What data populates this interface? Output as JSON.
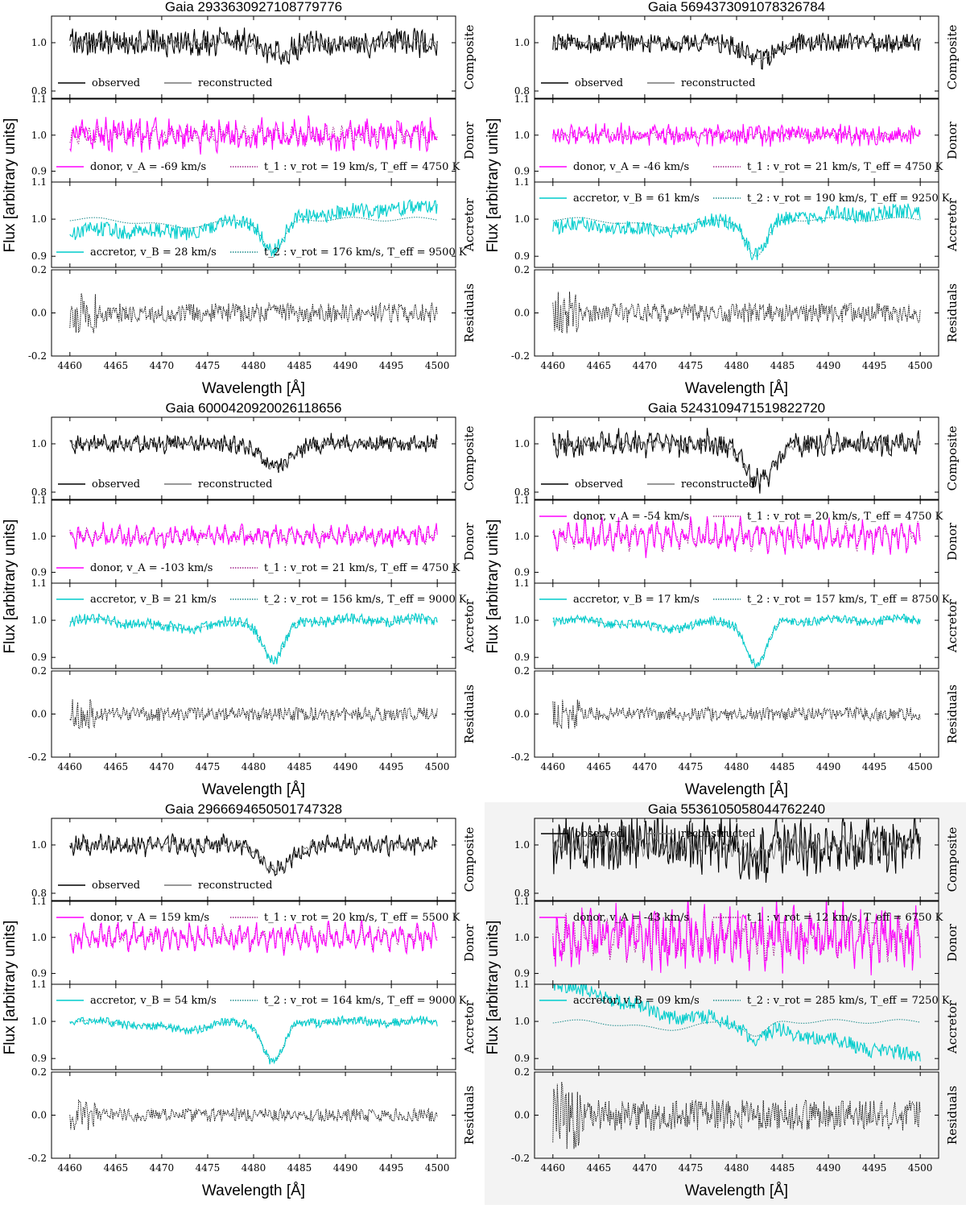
{
  "figure": {
    "ylabel": "Flux [arbitrary units]",
    "xlabel": "Wavelength [Å]",
    "highlight_color": "#f3f3f3",
    "colors": {
      "observed": "#000000",
      "reconstructed": "#777777",
      "donor": "#ff00ff",
      "donor_template": "#a0208a",
      "accretor": "#00cccc",
      "accretor_template": "#1a8a8a",
      "residuals": "#000000"
    },
    "row_labels": [
      "Composite",
      "Donor",
      "Accretor",
      "Residuals"
    ],
    "legend": {
      "observed": "observed",
      "reconstructed": "reconstructed",
      "donor_prefix": "donor, ",
      "accretor_prefix": "accretor, "
    }
  },
  "chart_data": [
    {
      "type": "line",
      "title": "Gaia 2933630927108779776",
      "highlighted": false,
      "x_range": [
        4460,
        4500
      ],
      "xticks": [
        4460,
        4465,
        4470,
        4475,
        4480,
        4485,
        4490,
        4495,
        4500
      ],
      "composite": {
        "ylim": [
          0.77,
          1.11
        ],
        "yticks": [
          "0.8",
          "1.0"
        ],
        "depth": 0.05,
        "noise": 0.05
      },
      "donor": {
        "ylim": [
          0.87,
          1.1
        ],
        "yticks": [
          "0.9",
          "1.0",
          "1.1"
        ],
        "velocity": "v_A = -69 km/s",
        "template": "t_1 : v_rot = 19 km/s, T_eff = 4750 K",
        "legend_position": "bottom",
        "noise": 0.04,
        "amp": 0.05
      },
      "accretor": {
        "ylim": [
          0.87,
          1.1
        ],
        "yticks": [
          "0.9",
          "1.0",
          "1.1"
        ],
        "velocity": "v_B = 28 km/s",
        "template": "t_2 : v_rot = 176 km/s, T_eff = 9500 K",
        "legend_position": "bottom",
        "line_depth": 0.09,
        "tilt": 0.035,
        "noise": 0.02
      },
      "residuals": {
        "ylim": [
          -0.2,
          0.2
        ],
        "yticks": [
          "0.2",
          "0.0",
          "-0.2"
        ],
        "scatter": 0.05
      }
    },
    {
      "type": "line",
      "title": "Gaia 5694373091078326784",
      "highlighted": false,
      "x_range": [
        4460,
        4500
      ],
      "xticks": [
        4460,
        4465,
        4470,
        4475,
        4480,
        4485,
        4490,
        4495,
        4500
      ],
      "composite": {
        "ylim": [
          0.77,
          1.11
        ],
        "yticks": [
          "0.8",
          "1.0"
        ],
        "depth": 0.07,
        "noise": 0.04
      },
      "donor": {
        "ylim": [
          0.87,
          1.1
        ],
        "yticks": [
          "0.9",
          "1.0",
          "1.1"
        ],
        "velocity": "v_A = -46 km/s",
        "template": "t_1 : v_rot = 21 km/s, T_eff = 4750 K",
        "legend_position": "bottom",
        "noise": 0.03,
        "amp": 0.02
      },
      "accretor": {
        "ylim": [
          0.87,
          1.1
        ],
        "yticks": [
          "0.9",
          "1.0",
          "1.1"
        ],
        "velocity": "v_B = 61 km/s",
        "template": "t_2 : v_rot = 190 km/s, T_eff = 9250 K",
        "legend_position": "top",
        "line_depth": 0.1,
        "tilt": 0.02,
        "noise": 0.02
      },
      "residuals": {
        "ylim": [
          -0.2,
          0.2
        ],
        "yticks": [
          "0.2",
          "0.0",
          "-0.2"
        ],
        "scatter": 0.05
      }
    },
    {
      "type": "line",
      "title": "Gaia 6000420920026118656",
      "highlighted": false,
      "x_range": [
        4460,
        4500
      ],
      "xticks": [
        4460,
        4465,
        4470,
        4475,
        4480,
        4485,
        4490,
        4495,
        4500
      ],
      "composite": {
        "ylim": [
          0.77,
          1.11
        ],
        "yticks": [
          "0.8",
          "1.0"
        ],
        "depth": 0.1,
        "noise": 0.03
      },
      "donor": {
        "ylim": [
          0.87,
          1.1
        ],
        "yticks": [
          "0.9",
          "1.0",
          "1.1"
        ],
        "velocity": "v_A = -103 km/s",
        "template": "t_1 : v_rot = 21 km/s, T_eff = 4750 K",
        "legend_position": "bottom",
        "noise": 0.02,
        "amp": 0.04
      },
      "accretor": {
        "ylim": [
          0.87,
          1.1
        ],
        "yticks": [
          "0.9",
          "1.0",
          "1.1"
        ],
        "velocity": "v_B = 21 km/s",
        "template": "t_2 : v_rot = 156 km/s, T_eff = 9000 K",
        "legend_position": "top",
        "line_depth": 0.11,
        "tilt": 0.0,
        "noise": 0.015
      },
      "residuals": {
        "ylim": [
          -0.2,
          0.2
        ],
        "yticks": [
          "0.2",
          "0.0",
          "-0.2"
        ],
        "scatter": 0.035
      }
    },
    {
      "type": "line",
      "title": "Gaia 5243109471519822720",
      "highlighted": false,
      "x_range": [
        4460,
        4500
      ],
      "xticks": [
        4460,
        4465,
        4470,
        4475,
        4480,
        4485,
        4490,
        4495,
        4500
      ],
      "composite": {
        "ylim": [
          0.77,
          1.11
        ],
        "yticks": [
          "0.8",
          "1.0"
        ],
        "depth": 0.15,
        "noise": 0.04
      },
      "donor": {
        "ylim": [
          0.87,
          1.1
        ],
        "yticks": [
          "0.9",
          "1.0",
          "1.1"
        ],
        "velocity": "v_A = -54 km/s",
        "template": "t_1 : v_rot = 20 km/s, T_eff = 4750 K",
        "legend_position": "top",
        "noise": 0.02,
        "amp": 0.07
      },
      "accretor": {
        "ylim": [
          0.87,
          1.1
        ],
        "yticks": [
          "0.9",
          "1.0",
          "1.1"
        ],
        "velocity": "v_B = 17 km/s",
        "template": "t_2 : v_rot = 157 km/s, T_eff = 8750 K",
        "legend_position": "top",
        "line_depth": 0.12,
        "tilt": 0.0,
        "noise": 0.012
      },
      "residuals": {
        "ylim": [
          -0.2,
          0.2
        ],
        "yticks": [
          "0.2",
          "0.0",
          "-0.2"
        ],
        "scatter": 0.035
      }
    },
    {
      "type": "line",
      "title": "Gaia 2966694650501747328",
      "highlighted": false,
      "x_range": [
        4460,
        4500
      ],
      "xticks": [
        4460,
        4465,
        4470,
        4475,
        4480,
        4485,
        4490,
        4495,
        4500
      ],
      "composite": {
        "ylim": [
          0.77,
          1.11
        ],
        "yticks": [
          "0.8",
          "1.0"
        ],
        "depth": 0.1,
        "noise": 0.03
      },
      "donor": {
        "ylim": [
          0.87,
          1.1
        ],
        "yticks": [
          "0.9",
          "1.0",
          "1.1"
        ],
        "velocity": "v_A = 159 km/s",
        "template": "t_1 : v_rot = 20 km/s, T_eff = 5500 K",
        "legend_position": "top",
        "noise": 0.02,
        "amp": 0.06
      },
      "accretor": {
        "ylim": [
          0.87,
          1.1
        ],
        "yticks": [
          "0.9",
          "1.0",
          "1.1"
        ],
        "velocity": "v_B = 54 km/s",
        "template": "t_2 : v_rot = 164 km/s, T_eff = 9000 K",
        "legend_position": "top",
        "line_depth": 0.11,
        "tilt": 0.0,
        "noise": 0.012
      },
      "residuals": {
        "ylim": [
          -0.2,
          0.2
        ],
        "yticks": [
          "0.2",
          "0.0",
          "-0.2"
        ],
        "scatter": 0.035
      }
    },
    {
      "type": "line",
      "title": "Gaia 5536105058044762240",
      "highlighted": true,
      "x_range": [
        4460,
        4500
      ],
      "xticks": [
        4460,
        4465,
        4470,
        4475,
        4480,
        4485,
        4490,
        4495,
        4500
      ],
      "composite": {
        "ylim": [
          0.77,
          1.11
        ],
        "yticks": [
          "0.8",
          "1.0"
        ],
        "depth": 0.04,
        "noise": 0.1,
        "legend_position": "top"
      },
      "donor": {
        "ylim": [
          0.87,
          1.1
        ],
        "yticks": [
          "0.9",
          "1.0",
          "1.1"
        ],
        "velocity": "v_A = -43 km/s",
        "template": "t_1 : v_rot = 12 km/s, T_eff = 6750 K",
        "legend_position": "top",
        "noise": 0.06,
        "amp": 0.12
      },
      "accretor": {
        "ylim": [
          0.87,
          1.1
        ],
        "yticks": [
          "0.9",
          "1.0",
          "1.1"
        ],
        "velocity": "v_B = 09 km/s",
        "template": "t_2 : v_rot = 285 km/s, T_eff = 7250 K",
        "legend_position": "top",
        "line_depth": 0.04,
        "tilt": -0.1,
        "noise": 0.02
      },
      "residuals": {
        "ylim": [
          -0.2,
          0.2
        ],
        "yticks": [
          "0.2",
          "0.0",
          "-0.2"
        ],
        "scatter": 0.08
      }
    }
  ]
}
